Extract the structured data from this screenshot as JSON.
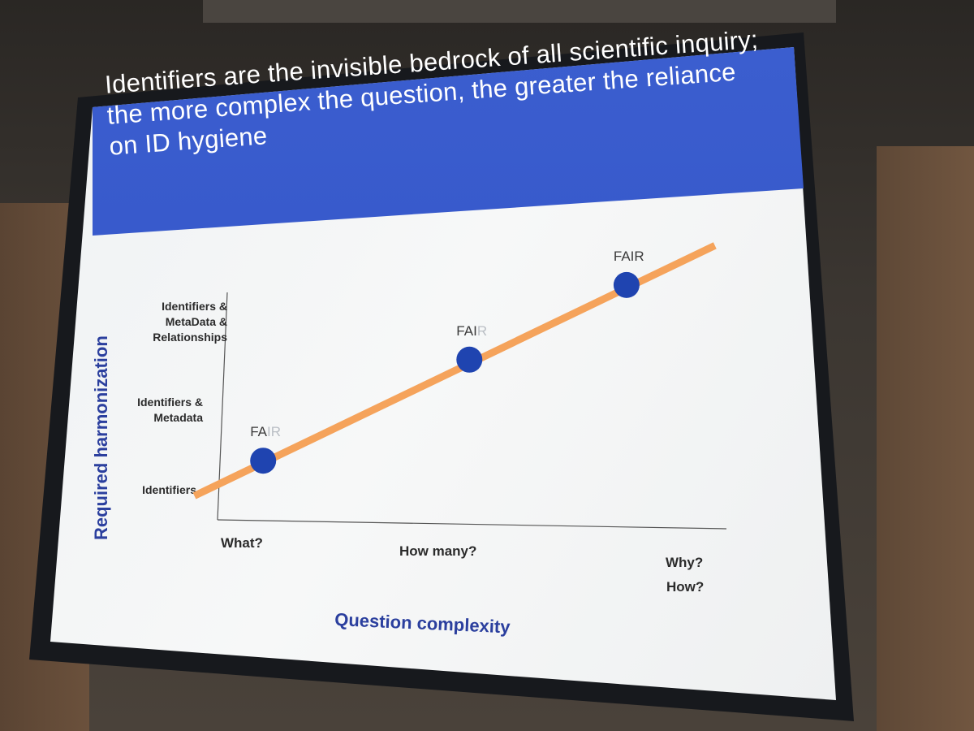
{
  "slide": {
    "title": "Identifiers are the invisible bedrock of all scientific inquiry; the more complex the question, the greater the reliance on ID hygiene"
  },
  "chart_data": {
    "type": "line",
    "xlabel": "Question complexity",
    "ylabel": "Required harmonization",
    "x_categories": [
      "What?",
      "How many?",
      "Why? How?"
    ],
    "y_categories": [
      "Identifiers",
      "Identifiers & Metadata",
      "Identifiers & MetaData & Relationships"
    ],
    "line_color": "#f5a35b",
    "point_color": "#1f44b0",
    "line": {
      "x": [
        -0.25,
        2.4
      ],
      "y": [
        -0.1,
        2.75
      ]
    },
    "points": [
      {
        "x": 0.1,
        "y": 0.3,
        "label_strong": "FA",
        "label_faded": "IR"
      },
      {
        "x": 1.15,
        "y": 1.45,
        "label_strong": "FAI",
        "label_faded": "R"
      },
      {
        "x": 1.95,
        "y": 2.3,
        "label_strong": "FAIR",
        "label_faded": ""
      }
    ],
    "grid": false,
    "legend": "none"
  }
}
